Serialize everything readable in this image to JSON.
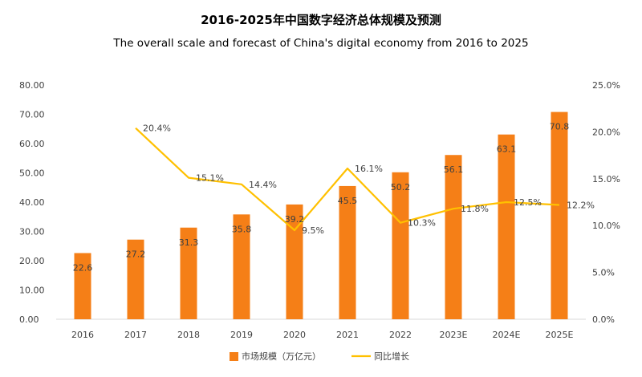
{
  "chart_data": {
    "type": "bar",
    "title": "2016-2025年中国数字经济总体规模及预测",
    "subtitle": "The overall scale and forecast of China's digital economy from 2016 to 2025",
    "categories": [
      "2016",
      "2017",
      "2018",
      "2019",
      "2020",
      "2021",
      "2022",
      "2023E",
      "2024E",
      "2025E"
    ],
    "series": [
      {
        "name": "市场规模（万亿元）",
        "type": "bar",
        "axis": "left",
        "color": "#F57F17",
        "values": [
          22.6,
          27.2,
          31.3,
          35.8,
          39.2,
          45.5,
          50.2,
          56.1,
          63.1,
          70.8
        ],
        "labels": [
          "22.6",
          "27.2",
          "31.3",
          "35.8",
          "39.2",
          "45.5",
          "50.2",
          "56.1",
          "63.1",
          "70.8"
        ]
      },
      {
        "name": "同比增长",
        "type": "line",
        "axis": "right",
        "color": "#FFC000",
        "values": [
          null,
          20.4,
          15.1,
          14.4,
          9.5,
          16.1,
          10.3,
          11.8,
          12.5,
          12.2
        ],
        "labels": [
          "",
          "20.4%",
          "15.1%",
          "14.4%",
          "9.5%",
          "16.1%",
          "10.3%",
          "11.8%",
          "12.5%",
          "12.2%"
        ]
      }
    ],
    "y_left": {
      "min": 0,
      "max": 80,
      "step": 10,
      "ticks": [
        "0.00",
        "10.00",
        "20.00",
        "30.00",
        "40.00",
        "50.00",
        "60.00",
        "70.00",
        "80.00"
      ]
    },
    "y_right": {
      "min": 0,
      "max": 25,
      "step": 5,
      "ticks": [
        "0.0%",
        "5.0%",
        "10.0%",
        "15.0%",
        "20.0%",
        "25.0%"
      ]
    },
    "grid": false,
    "legend_position": "bottom-center"
  }
}
